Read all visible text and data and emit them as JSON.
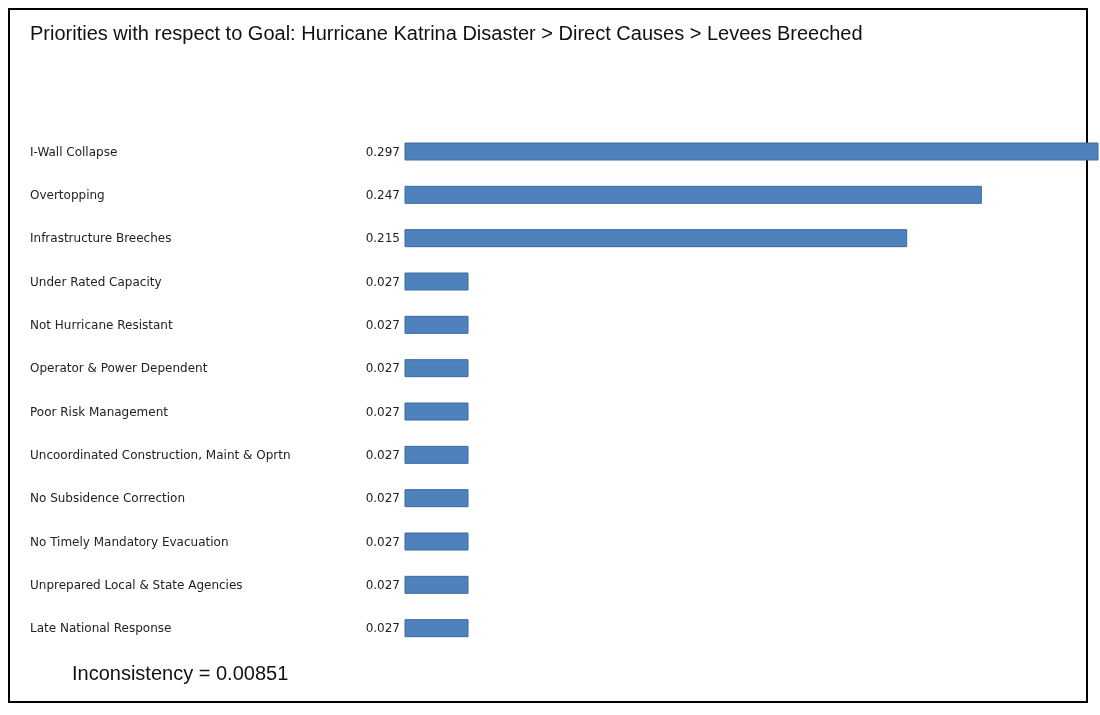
{
  "chart_data": {
    "type": "bar",
    "orientation": "horizontal",
    "title": "Priorities with respect to Goal: Hurricane Katrina Disaster  > Direct Causes > Levees Breeched",
    "categories": [
      "I-Wall Collapse",
      "Overtopping",
      "Infrastructure Breeches",
      "Under Rated Capacity",
      "Not Hurricane Resistant",
      "Operator & Power Dependent",
      "Poor Risk Management",
      "Uncoordinated Construction, Maint &  Oprtn",
      "No Subsidence Correction",
      "No Timely Mandatory Evacuation",
      "Unprepared Local & State Agencies",
      "Late National Response"
    ],
    "values": [
      0.297,
      0.247,
      0.215,
      0.027,
      0.027,
      0.027,
      0.027,
      0.027,
      0.027,
      0.027,
      0.027,
      0.027
    ],
    "color": "#4f81bd",
    "data_labels": true,
    "annotations": [
      "Inconsistency = 0.00851"
    ]
  }
}
